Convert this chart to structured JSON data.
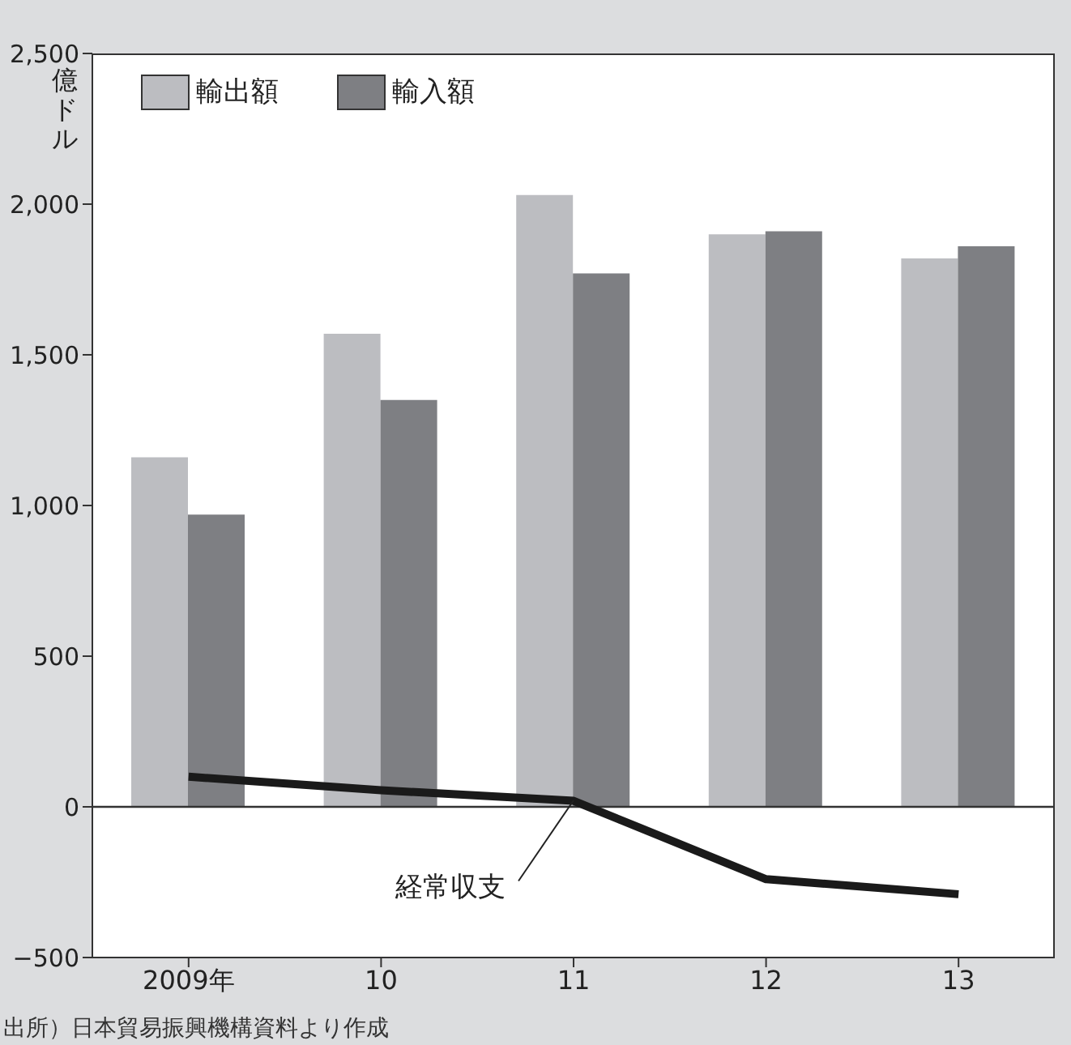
{
  "chart_data": {
    "type": "bar",
    "ylabel": "億ドル",
    "categories": [
      "2009年",
      "10",
      "11",
      "12",
      "13"
    ],
    "series": [
      {
        "name": "輸出額",
        "color": "#bcbdc1",
        "values": [
          1160,
          1570,
          2030,
          1900,
          1820
        ]
      },
      {
        "name": "輸入額",
        "color": "#7e7f83",
        "values": [
          970,
          1350,
          1770,
          1910,
          1860
        ]
      },
      {
        "type": "line",
        "color": "#1a1a1a",
        "values": [
          100,
          55,
          20,
          -240,
          -290
        ]
      }
    ],
    "ylim": [
      -500,
      2500
    ],
    "yticks": [
      {
        "value": -500,
        "label": "−500"
      },
      0,
      500,
      {
        "value": 1000,
        "label": "1,000"
      },
      {
        "value": 1500,
        "label": "1,500"
      },
      {
        "value": 2000,
        "label": "2,000"
      },
      {
        "value": 2500,
        "label": "2,500"
      }
    ],
    "ref_lines": [
      {
        "axis": "y",
        "value": 0,
        "color": "#333333"
      }
    ],
    "legend": "top left",
    "marker": "none",
    "line_style": "solid",
    "annotations": [
      {
        "text": "経常収支",
        "x": "11",
        "y": 20
      },
      "出所）日本貿易振興機構資料より作成"
    ]
  }
}
